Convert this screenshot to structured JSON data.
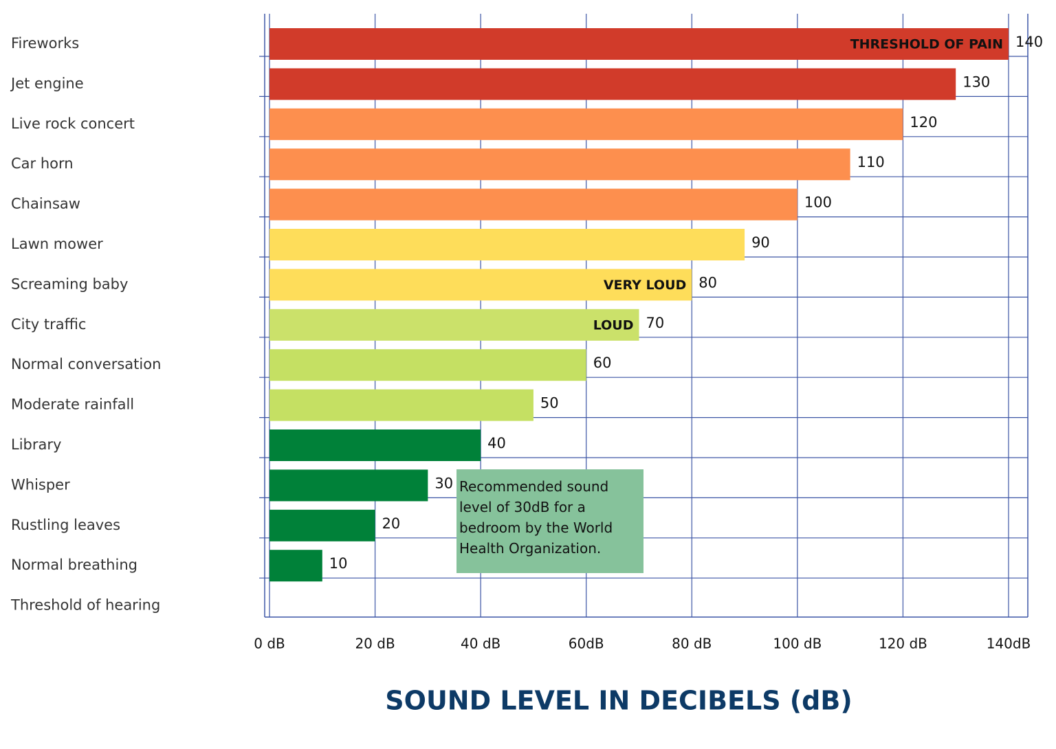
{
  "chart_data": {
    "type": "bar",
    "orientation": "horizontal",
    "categories": [
      "Fireworks",
      "Jet engine",
      "Live rock concert",
      "Car horn",
      "Chainsaw",
      "Lawn mower",
      "Screaming baby",
      "City traffic",
      "Normal conversation",
      "Moderate rainfall",
      "Library",
      "Whisper",
      "Rustling leaves",
      "Normal breathing",
      "Threshold of hearing"
    ],
    "values": [
      140,
      130,
      120,
      110,
      100,
      90,
      80,
      70,
      60,
      50,
      40,
      30,
      20,
      10,
      null
    ],
    "colors": [
      "#d13b2a",
      "#d13b2a",
      "#fd8f4e",
      "#fd8f4e",
      "#fd8f4e",
      "#fedd5a",
      "#fedd5a",
      "#cbe16a",
      "#c5e063",
      "#c5e063",
      "#008139",
      "#008139",
      "#008139",
      "#008139",
      null
    ],
    "bar_annotations": [
      "THRESHOLD OF PAIN",
      null,
      null,
      null,
      null,
      null,
      "VERY LOUD",
      "LOUD",
      null,
      null,
      null,
      null,
      null,
      null,
      null
    ],
    "xlim": [
      0,
      140
    ],
    "xticks": [
      {
        "value": 0,
        "label": "0 dB"
      },
      {
        "value": 20,
        "label": "20 dB"
      },
      {
        "value": 40,
        "label": "40 dB"
      },
      {
        "value": 60,
        "label": "60dB"
      },
      {
        "value": 80,
        "label": "80 dB"
      },
      {
        "value": 100,
        "label": "100 dB"
      },
      {
        "value": 120,
        "label": "120 dB"
      },
      {
        "value": 140,
        "label": "140dB"
      }
    ],
    "x_label": "SOUND LEVEL IN DECIBELS (dB)",
    "note": "Recommended sound level of 30dB for a bedroom by the World Health Organization.",
    "grid": true
  }
}
